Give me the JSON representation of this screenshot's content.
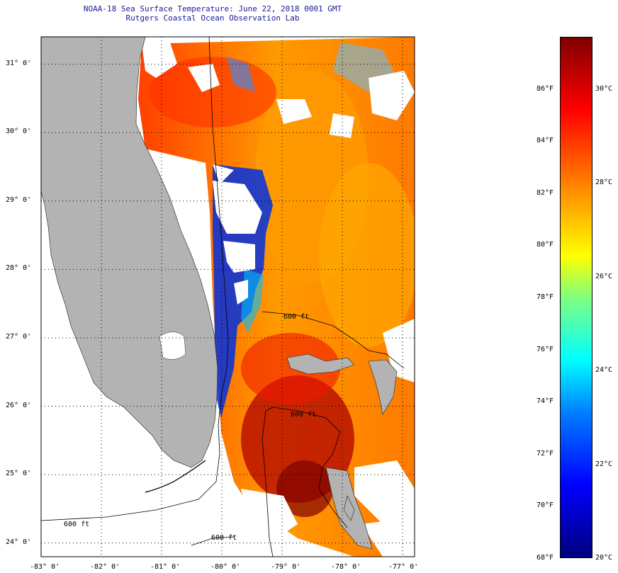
{
  "title": {
    "line1": "NOAA-18 Sea Surface Temperature:  June 22, 2018 0001 GMT",
    "line2": "Rutgers Coastal Ocean Observation Lab"
  },
  "map": {
    "lat_labels": [
      "31° 0'",
      "30° 0'",
      "29° 0'",
      "28° 0'",
      "27° 0'",
      "26° 0'",
      "25° 0'",
      "24° 0'"
    ],
    "lat_values": [
      31,
      30,
      29,
      28,
      27,
      26,
      25,
      24
    ],
    "lon_labels": [
      "-83° 0'",
      "-82° 0'",
      "-81° 0'",
      "-80° 0'",
      "-79° 0'",
      "-78° 0'",
      "-77° 0'"
    ],
    "lon_values": [
      -83,
      -82,
      -81,
      -80,
      -79,
      -78,
      -77
    ],
    "lat_range": [
      23.8,
      31.4
    ],
    "lon_range": [
      -83,
      -76.8
    ],
    "contour_labels": [
      "600 ft",
      "600 ft",
      "600 ft",
      "600 ft"
    ],
    "land_color": "#b3b3b3",
    "cloud_color": "#ffffff"
  },
  "colorbar": {
    "f_labels": [
      "86°F",
      "84°F",
      "82°F",
      "80°F",
      "78°F",
      "76°F",
      "74°F",
      "72°F",
      "70°F",
      "68°F"
    ],
    "f_values": [
      86,
      84,
      82,
      80,
      78,
      76,
      74,
      72,
      70,
      68
    ],
    "c_labels": [
      "30°C",
      "28°C",
      "26°C",
      "24°C",
      "22°C",
      "20°C"
    ],
    "c_values": [
      30,
      28,
      26,
      24,
      22,
      20
    ],
    "range_f": [
      68,
      88
    ]
  }
}
